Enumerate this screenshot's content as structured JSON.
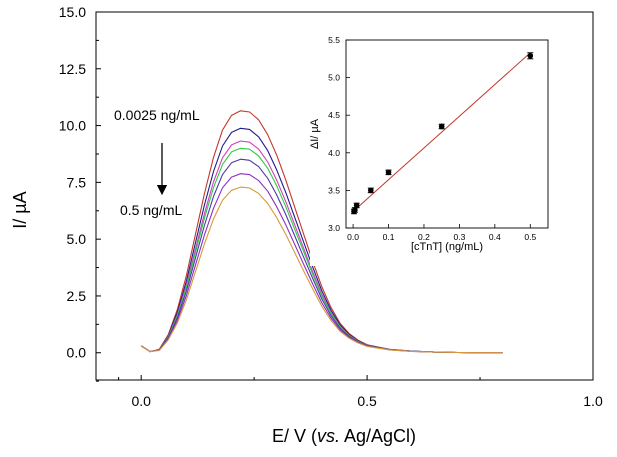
{
  "chart_data": [
    {
      "type": "line",
      "xlabel": {
        "prefix": "E/ V (",
        "italic": "vs.",
        "suffix": " Ag/AgCl)"
      },
      "ylabel": "I/ µA",
      "xlim": [
        -0.1,
        1.0
      ],
      "ylim": [
        -1.2,
        15.0
      ],
      "xticks": [
        "0.0",
        "0.5",
        "1.0"
      ],
      "yticks": [
        "0.0",
        "2.5",
        "5.0",
        "7.5",
        "10.0",
        "12.5",
        "15.0"
      ],
      "xtick_values": [
        0.0,
        0.5,
        1.0
      ],
      "ytick_values": [
        0.0,
        2.5,
        5.0,
        7.5,
        10.0,
        12.5,
        15.0
      ],
      "annotations": {
        "top": "0.0025 ng/mL",
        "bottom": "0.5 ng/mL"
      },
      "x": [
        0.0,
        0.02,
        0.04,
        0.06,
        0.08,
        0.1,
        0.12,
        0.14,
        0.16,
        0.18,
        0.2,
        0.22,
        0.24,
        0.26,
        0.28,
        0.3,
        0.32,
        0.34,
        0.36,
        0.38,
        0.4,
        0.42,
        0.44,
        0.46,
        0.48,
        0.5,
        0.55,
        0.6,
        0.65,
        0.7,
        0.75,
        0.8
      ],
      "series": [
        {
          "color": "#c0392b",
          "values": [
            0.3,
            0.05,
            0.15,
            0.8,
            1.9,
            3.4,
            5.2,
            7.0,
            8.6,
            9.8,
            10.45,
            10.65,
            10.6,
            10.25,
            9.6,
            8.7,
            7.6,
            6.4,
            5.2,
            4.0,
            2.9,
            2.0,
            1.3,
            0.85,
            0.55,
            0.35,
            0.15,
            0.07,
            0.03,
            0.01,
            0.0,
            0.0
          ]
        },
        {
          "color": "#1f1a8c",
          "values": [
            0.3,
            0.05,
            0.14,
            0.75,
            1.77,
            3.16,
            4.83,
            6.5,
            7.98,
            9.1,
            9.7,
            9.88,
            9.83,
            9.5,
            8.9,
            8.05,
            7.05,
            5.95,
            4.85,
            3.75,
            2.72,
            1.88,
            1.23,
            0.81,
            0.52,
            0.33,
            0.14,
            0.07,
            0.03,
            0.01,
            0.0,
            0.0
          ]
        },
        {
          "color": "#d040c0",
          "values": [
            0.3,
            0.05,
            0.13,
            0.72,
            1.67,
            2.98,
            4.55,
            6.12,
            7.52,
            8.58,
            9.15,
            9.32,
            9.27,
            8.96,
            8.4,
            7.6,
            6.65,
            5.62,
            4.58,
            3.54,
            2.57,
            1.78,
            1.17,
            0.77,
            0.5,
            0.32,
            0.14,
            0.07,
            0.03,
            0.01,
            0.0,
            0.0
          ]
        },
        {
          "color": "#2ecc40",
          "values": [
            0.3,
            0.05,
            0.13,
            0.7,
            1.62,
            2.88,
            4.4,
            5.92,
            7.27,
            8.29,
            8.84,
            9.0,
            8.96,
            8.66,
            8.12,
            7.35,
            6.43,
            5.43,
            4.43,
            3.43,
            2.49,
            1.73,
            1.14,
            0.75,
            0.49,
            0.31,
            0.14,
            0.07,
            0.03,
            0.01,
            0.0,
            0.0
          ]
        },
        {
          "color": "#4a3aa8",
          "values": [
            0.3,
            0.05,
            0.12,
            0.66,
            1.53,
            2.72,
            4.16,
            5.6,
            6.88,
            7.84,
            8.36,
            8.52,
            8.47,
            8.19,
            7.68,
            6.95,
            6.08,
            5.14,
            4.19,
            3.25,
            2.36,
            1.64,
            1.08,
            0.72,
            0.47,
            0.3,
            0.13,
            0.07,
            0.03,
            0.01,
            0.0,
            0.0
          ]
        },
        {
          "color": "#8e2fbf",
          "values": [
            0.3,
            0.05,
            0.11,
            0.61,
            1.42,
            2.52,
            3.85,
            5.18,
            6.36,
            7.26,
            7.73,
            7.88,
            7.84,
            7.58,
            7.11,
            6.43,
            5.63,
            4.76,
            3.88,
            3.01,
            2.19,
            1.53,
            1.01,
            0.68,
            0.45,
            0.29,
            0.13,
            0.06,
            0.03,
            0.01,
            0.0,
            0.0
          ]
        },
        {
          "color": "#d99a3a",
          "values": [
            0.3,
            0.05,
            0.1,
            0.57,
            1.31,
            2.33,
            3.56,
            4.79,
            5.89,
            6.71,
            7.15,
            7.29,
            7.25,
            7.01,
            6.57,
            5.95,
            5.21,
            4.4,
            3.59,
            2.79,
            2.04,
            1.43,
            0.95,
            0.64,
            0.43,
            0.28,
            0.12,
            0.06,
            0.03,
            0.01,
            0.0,
            0.0
          ]
        }
      ]
    },
    {
      "type": "scatter",
      "xlabel": "[cTnT] (ng/mL)",
      "ylabel": "ΔI/ µA",
      "xlim": [
        -0.02,
        0.55
      ],
      "ylim": [
        3.0,
        5.5
      ],
      "xticks": [
        "0.0",
        "0.1",
        "0.2",
        "0.3",
        "0.4",
        "0.5"
      ],
      "yticks": [
        "3.0",
        "3.5",
        "4.0",
        "4.5",
        "5.0",
        "5.5"
      ],
      "xtick_values": [
        0.0,
        0.1,
        0.2,
        0.3,
        0.4,
        0.5
      ],
      "ytick_values": [
        3.0,
        3.5,
        4.0,
        4.5,
        5.0,
        5.5
      ],
      "points": [
        {
          "x": 0.0025,
          "y": 3.22,
          "err": 0.03
        },
        {
          "x": 0.005,
          "y": 3.24,
          "err": 0.03
        },
        {
          "x": 0.01,
          "y": 3.3,
          "err": 0.03
        },
        {
          "x": 0.05,
          "y": 3.5,
          "err": 0.03
        },
        {
          "x": 0.1,
          "y": 3.74,
          "err": 0.03
        },
        {
          "x": 0.25,
          "y": 4.35,
          "err": 0.03
        },
        {
          "x": 0.5,
          "y": 5.29,
          "err": 0.04
        }
      ],
      "fit": {
        "x": [
          0.0,
          0.5
        ],
        "y": [
          3.22,
          5.33
        ],
        "color": "#c0392b"
      }
    }
  ]
}
